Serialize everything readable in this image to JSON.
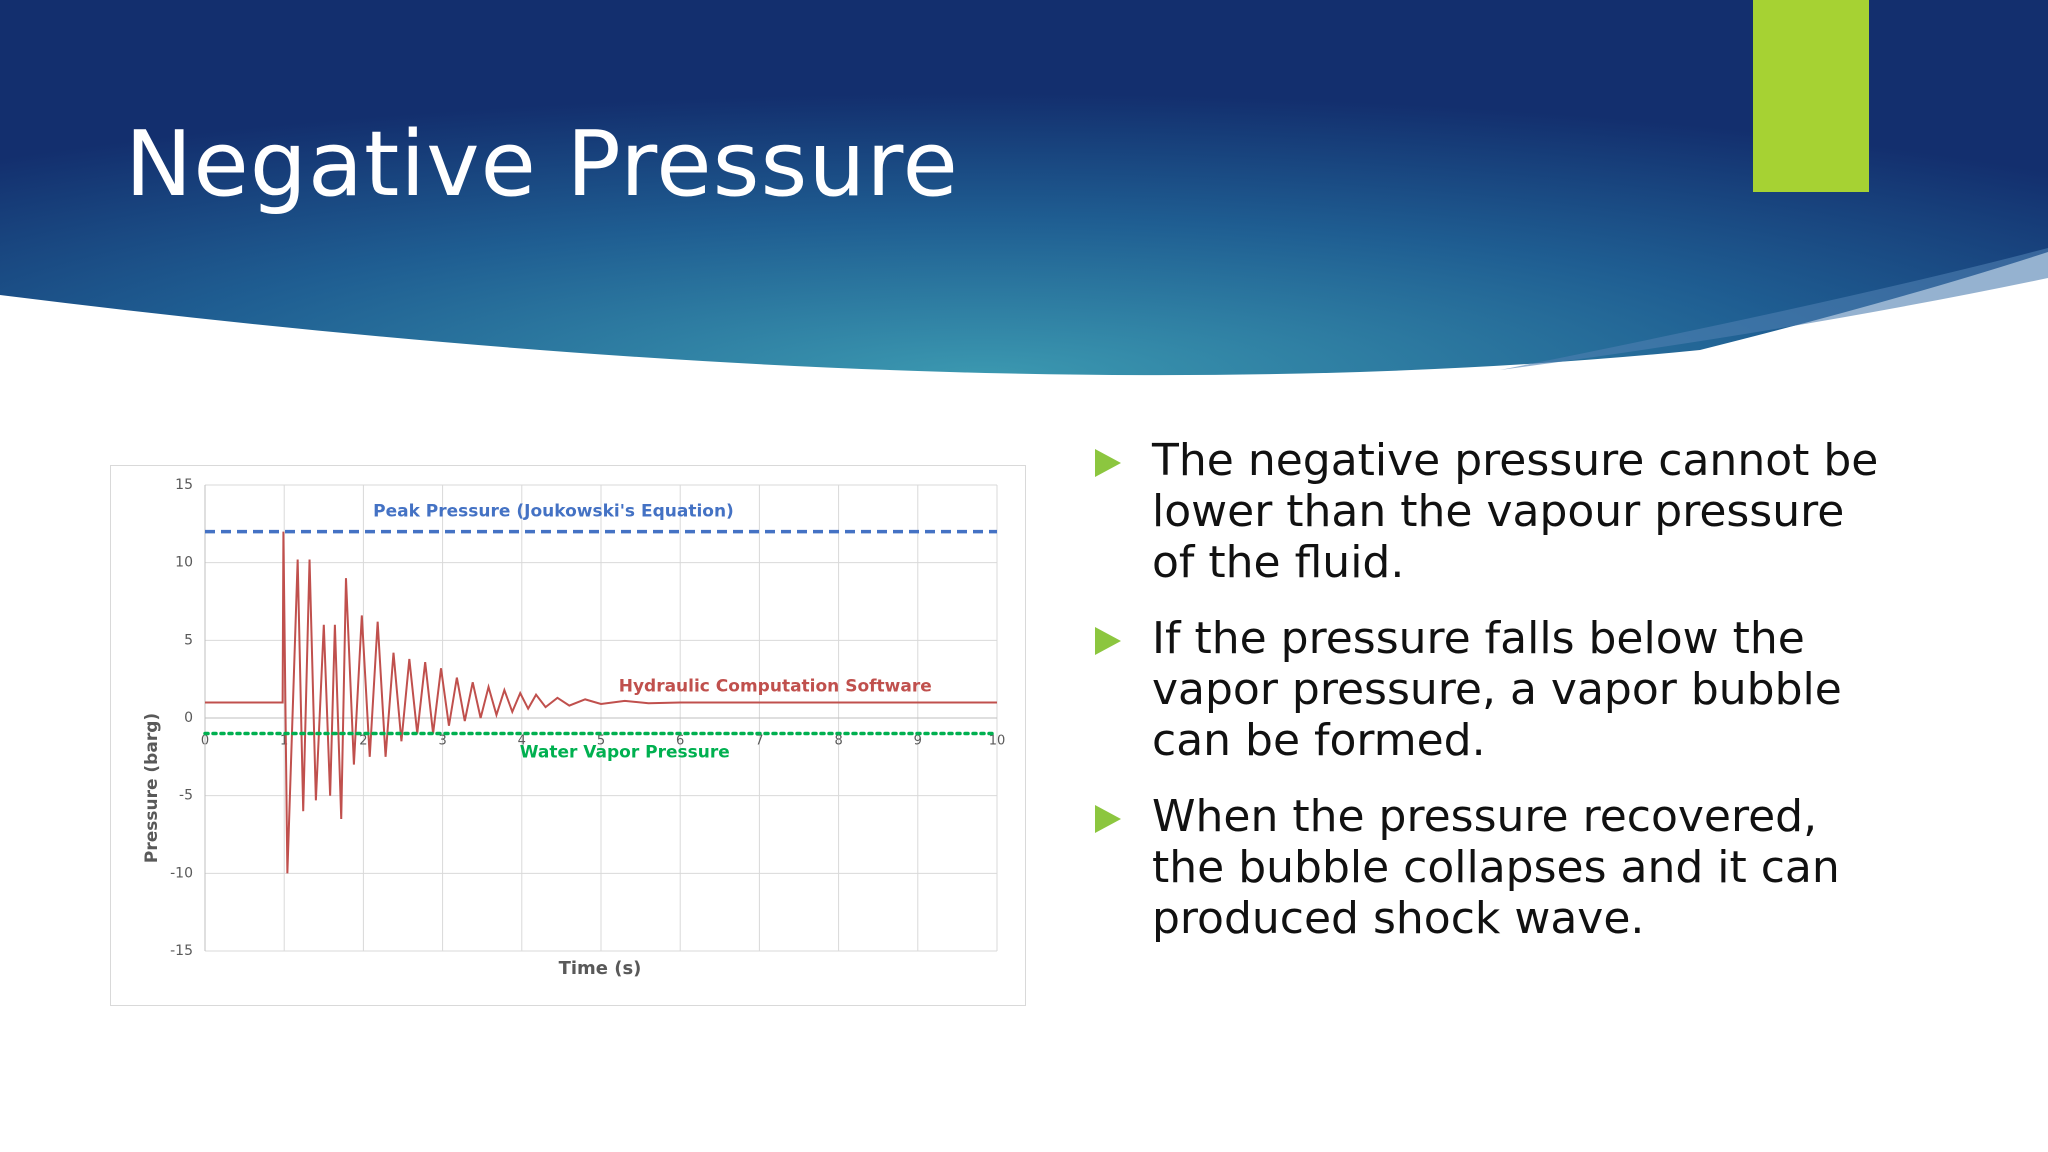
{
  "title": "Negative Pressure",
  "bullets": [
    "The negative pressure cannot be lower than the vapour pressure of the fluid.",
    "If the pressure falls below the vapor pressure, a vapor bubble can be formed.",
    "When the pressure recovered, the bubble collapses and it can produced shock wave."
  ],
  "chart_data": {
    "type": "line",
    "ylabel": "Pressure (barg)",
    "xlabel": "Time (s)",
    "xlim": [
      0,
      10
    ],
    "ylim": [
      -15,
      15
    ],
    "xticks": [
      0,
      1,
      2,
      3,
      4,
      5,
      6,
      7,
      8,
      9,
      10
    ],
    "yticks": [
      -15,
      -10,
      -5,
      0,
      5,
      10,
      15
    ],
    "grid": true,
    "series": [
      {
        "name": "Peak Pressure (Joukowski's Equation)",
        "color": "#4472c4",
        "style": "dashed",
        "x": [
          0,
          10
        ],
        "values": [
          12,
          12
        ]
      },
      {
        "name": "Hydraulic Computation Software",
        "color": "#c0504d",
        "style": "solid",
        "x": [
          0,
          0.98,
          0.99,
          1.04,
          1.17,
          1.24,
          1.32,
          1.4,
          1.5,
          1.58,
          1.64,
          1.72,
          1.78,
          1.88,
          1.98,
          2.08,
          2.18,
          2.28,
          2.38,
          2.48,
          2.58,
          2.68,
          2.78,
          2.88,
          2.98,
          3.08,
          3.18,
          3.28,
          3.38,
          3.48,
          3.58,
          3.68,
          3.78,
          3.88,
          3.98,
          4.08,
          4.18,
          4.3,
          4.45,
          4.6,
          4.8,
          5.0,
          5.3,
          5.6,
          6.0,
          10
        ],
        "values": [
          1,
          1,
          12,
          -10,
          10.2,
          -6,
          10.2,
          -5.3,
          6,
          -5,
          6,
          -6.5,
          9,
          -3,
          6.6,
          -2.5,
          6.2,
          -2.5,
          4.2,
          -1.5,
          3.8,
          -1,
          3.6,
          -1,
          3.2,
          -0.5,
          2.6,
          -0.2,
          2.3,
          0,
          2,
          0.2,
          1.8,
          0.4,
          1.6,
          0.6,
          1.5,
          0.7,
          1.3,
          0.8,
          1.2,
          0.9,
          1.1,
          0.95,
          1,
          1
        ]
      },
      {
        "name": "Water Vapor Pressure",
        "color": "#00b050",
        "style": "dotted",
        "x": [
          0,
          10
        ],
        "values": [
          -1,
          -1
        ]
      }
    ]
  }
}
